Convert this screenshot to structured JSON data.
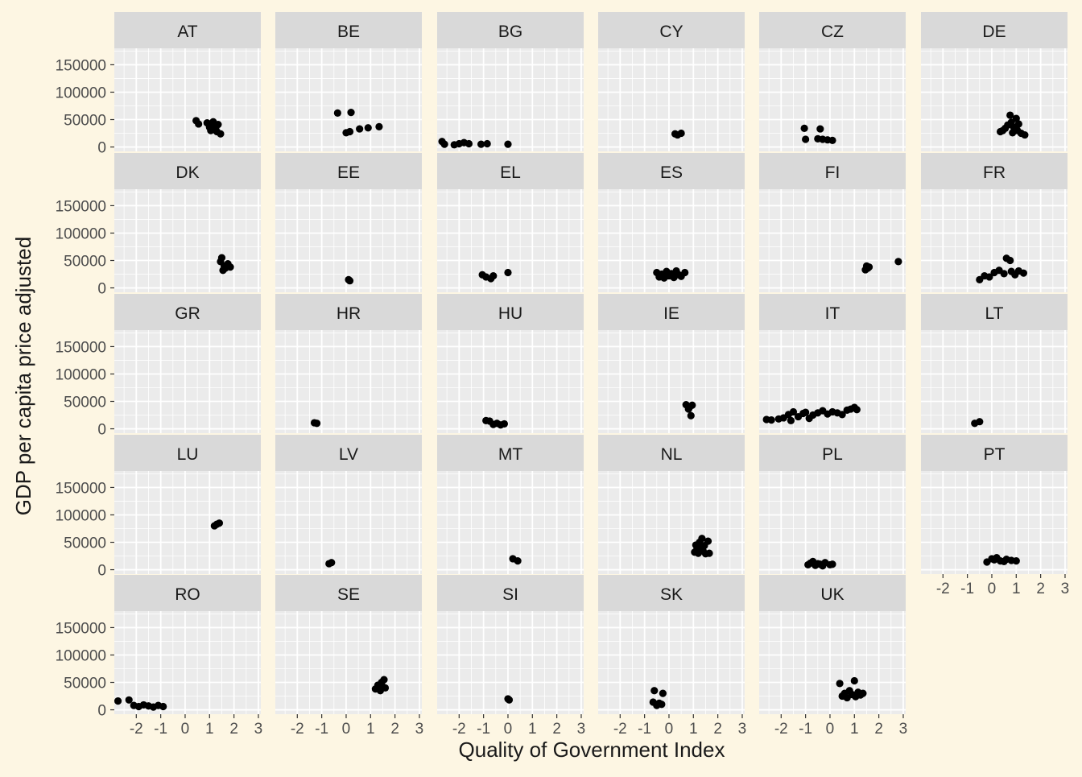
{
  "chart_data": {
    "type": "scatter",
    "xlabel": "Quality of Government Index",
    "ylabel": "GDP per capita price adjusted",
    "xlim": [
      -2.9,
      3.1
    ],
    "ylim": [
      -8000,
      180000
    ],
    "x_ticks": [
      -2,
      -1,
      0,
      1,
      2,
      3
    ],
    "x_tick_labels": [
      "-2",
      "-1",
      "0",
      "1",
      "2",
      "3"
    ],
    "y_ticks": [
      0,
      50000,
      100000,
      150000
    ],
    "y_tick_labels": [
      "0",
      "50000",
      "100000",
      "150000"
    ],
    "grid": true,
    "colors": {
      "background": "#FDF6E3",
      "panel": "#EBEBEB",
      "strip": "#D9D9D9",
      "grid": "#FFFFFF",
      "point": "#000000",
      "text": "#1A1A1A",
      "tick_text": "#4D4D4D"
    },
    "panels": [
      {
        "label": "AT",
        "points": [
          [
            0.45,
            48000
          ],
          [
            0.55,
            42000
          ],
          [
            0.9,
            44000
          ],
          [
            1.0,
            36000
          ],
          [
            1.05,
            30000
          ],
          [
            1.15,
            46000
          ],
          [
            1.2,
            40000
          ],
          [
            1.25,
            33000
          ],
          [
            1.3,
            28000
          ],
          [
            1.35,
            41000
          ],
          [
            1.45,
            24000
          ]
        ]
      },
      {
        "label": "BE",
        "points": [
          [
            -0.35,
            62000
          ],
          [
            0.0,
            26000
          ],
          [
            0.15,
            28000
          ],
          [
            0.2,
            63000
          ],
          [
            0.55,
            33000
          ],
          [
            0.9,
            35000
          ],
          [
            1.35,
            37000
          ]
        ]
      },
      {
        "label": "BG",
        "points": [
          [
            -2.7,
            10000
          ],
          [
            -2.6,
            5000
          ],
          [
            -2.2,
            4000
          ],
          [
            -2.0,
            6000
          ],
          [
            -1.8,
            8000
          ],
          [
            -1.6,
            6000
          ],
          [
            -1.1,
            5000
          ],
          [
            -0.85,
            6000
          ],
          [
            0.0,
            5000
          ]
        ]
      },
      {
        "label": "CY",
        "points": [
          [
            0.25,
            24000
          ],
          [
            0.35,
            22000
          ],
          [
            0.5,
            25000
          ]
        ]
      },
      {
        "label": "CZ",
        "points": [
          [
            -1.05,
            34000
          ],
          [
            -1.0,
            14000
          ],
          [
            -0.5,
            15000
          ],
          [
            -0.4,
            33000
          ],
          [
            -0.3,
            14000
          ],
          [
            -0.1,
            13000
          ],
          [
            0.1,
            12000
          ]
        ]
      },
      {
        "label": "DE",
        "points": [
          [
            0.35,
            28000
          ],
          [
            0.45,
            30000
          ],
          [
            0.55,
            34000
          ],
          [
            0.65,
            40000
          ],
          [
            0.75,
            58000
          ],
          [
            0.8,
            45000
          ],
          [
            0.85,
            26000
          ],
          [
            0.9,
            36000
          ],
          [
            1.0,
            52000
          ],
          [
            1.05,
            30000
          ],
          [
            1.1,
            42000
          ],
          [
            1.2,
            25000
          ],
          [
            1.35,
            22000
          ]
        ]
      },
      {
        "label": "DK",
        "points": [
          [
            1.45,
            48000
          ],
          [
            1.5,
            55000
          ],
          [
            1.55,
            32000
          ],
          [
            1.6,
            40000
          ],
          [
            1.65,
            36000
          ],
          [
            1.75,
            44000
          ],
          [
            1.85,
            38000
          ]
        ]
      },
      {
        "label": "EE",
        "points": [
          [
            0.1,
            15000
          ],
          [
            0.15,
            13000
          ]
        ]
      },
      {
        "label": "EL",
        "points": [
          [
            -1.05,
            24000
          ],
          [
            -0.9,
            20000
          ],
          [
            -0.7,
            17000
          ],
          [
            -0.6,
            22000
          ],
          [
            0.0,
            28000
          ]
        ]
      },
      {
        "label": "ES",
        "points": [
          [
            -0.5,
            28000
          ],
          [
            -0.4,
            20000
          ],
          [
            -0.3,
            25000
          ],
          [
            -0.2,
            18000
          ],
          [
            -0.1,
            30000
          ],
          [
            0.0,
            22000
          ],
          [
            0.1,
            26000
          ],
          [
            0.2,
            19000
          ],
          [
            0.3,
            31000
          ],
          [
            0.4,
            24000
          ],
          [
            0.5,
            21000
          ],
          [
            0.65,
            28000
          ]
        ]
      },
      {
        "label": "FI",
        "points": [
          [
            1.45,
            33000
          ],
          [
            1.5,
            40000
          ],
          [
            1.55,
            36000
          ],
          [
            1.6,
            38000
          ],
          [
            2.8,
            48000
          ]
        ]
      },
      {
        "label": "FR",
        "points": [
          [
            -0.5,
            15000
          ],
          [
            -0.3,
            22000
          ],
          [
            -0.1,
            20000
          ],
          [
            0.1,
            28000
          ],
          [
            0.3,
            32000
          ],
          [
            0.5,
            26000
          ],
          [
            0.6,
            54000
          ],
          [
            0.75,
            50000
          ],
          [
            0.8,
            30000
          ],
          [
            0.95,
            24000
          ],
          [
            1.1,
            31000
          ],
          [
            1.3,
            27000
          ]
        ]
      },
      {
        "label": "GR",
        "points": []
      },
      {
        "label": "HR",
        "points": [
          [
            -1.3,
            11000
          ],
          [
            -1.2,
            10000
          ]
        ]
      },
      {
        "label": "HU",
        "points": [
          [
            -0.9,
            15000
          ],
          [
            -0.75,
            14000
          ],
          [
            -0.6,
            8000
          ],
          [
            -0.45,
            10000
          ],
          [
            -0.3,
            7000
          ],
          [
            -0.15,
            9000
          ]
        ]
      },
      {
        "label": "IE",
        "points": [
          [
            0.7,
            44000
          ],
          [
            0.8,
            36000
          ],
          [
            0.85,
            40000
          ],
          [
            0.9,
            24000
          ],
          [
            0.95,
            43000
          ]
        ]
      },
      {
        "label": "IT",
        "points": [
          [
            -2.6,
            17000
          ],
          [
            -2.4,
            16000
          ],
          [
            -2.1,
            18000
          ],
          [
            -1.9,
            20000
          ],
          [
            -1.7,
            26000
          ],
          [
            -1.6,
            15000
          ],
          [
            -1.5,
            31000
          ],
          [
            -1.3,
            22000
          ],
          [
            -1.1,
            28000
          ],
          [
            -1.0,
            30000
          ],
          [
            -0.85,
            19000
          ],
          [
            -0.7,
            25000
          ],
          [
            -0.5,
            29000
          ],
          [
            -0.3,
            33000
          ],
          [
            -0.1,
            27000
          ],
          [
            0.1,
            31000
          ],
          [
            0.3,
            29000
          ],
          [
            0.5,
            26000
          ],
          [
            0.7,
            34000
          ],
          [
            0.85,
            36000
          ],
          [
            1.0,
            39000
          ],
          [
            1.1,
            35000
          ]
        ]
      },
      {
        "label": "LT",
        "points": [
          [
            -0.7,
            10000
          ],
          [
            -0.5,
            13000
          ]
        ]
      },
      {
        "label": "LU",
        "points": [
          [
            1.2,
            80000
          ],
          [
            1.3,
            83000
          ],
          [
            1.4,
            85000
          ]
        ]
      },
      {
        "label": "LV",
        "points": [
          [
            -0.7,
            11000
          ],
          [
            -0.6,
            13000
          ]
        ]
      },
      {
        "label": "MT",
        "points": [
          [
            0.2,
            20000
          ],
          [
            0.4,
            16000
          ]
        ]
      },
      {
        "label": "NL",
        "points": [
          [
            1.05,
            32000
          ],
          [
            1.1,
            45000
          ],
          [
            1.15,
            38000
          ],
          [
            1.2,
            30000
          ],
          [
            1.25,
            50000
          ],
          [
            1.3,
            40000
          ],
          [
            1.35,
            57000
          ],
          [
            1.4,
            34000
          ],
          [
            1.45,
            44000
          ],
          [
            1.5,
            29000
          ],
          [
            1.6,
            52000
          ],
          [
            1.65,
            30000
          ]
        ]
      },
      {
        "label": "PL",
        "points": [
          [
            -0.9,
            9000
          ],
          [
            -0.8,
            12000
          ],
          [
            -0.7,
            15000
          ],
          [
            -0.6,
            8000
          ],
          [
            -0.5,
            11000
          ],
          [
            -0.4,
            10000
          ],
          [
            -0.3,
            7000
          ],
          [
            -0.2,
            13000
          ],
          [
            0.0,
            9000
          ],
          [
            0.1,
            10000
          ]
        ]
      },
      {
        "label": "PT",
        "points": [
          [
            -0.2,
            14000
          ],
          [
            0.0,
            20000
          ],
          [
            0.1,
            18000
          ],
          [
            0.2,
            22000
          ],
          [
            0.35,
            16000
          ],
          [
            0.5,
            15000
          ],
          [
            0.6,
            19000
          ],
          [
            0.8,
            17000
          ],
          [
            1.0,
            16000
          ]
        ]
      },
      {
        "label": "RO",
        "points": [
          [
            -2.75,
            16000
          ],
          [
            -2.3,
            18000
          ],
          [
            -2.1,
            8000
          ],
          [
            -1.9,
            6000
          ],
          [
            -1.7,
            9000
          ],
          [
            -1.5,
            7000
          ],
          [
            -1.3,
            5000
          ],
          [
            -1.1,
            8000
          ],
          [
            -0.9,
            6000
          ]
        ]
      },
      {
        "label": "SE",
        "points": [
          [
            1.2,
            38000
          ],
          [
            1.3,
            45000
          ],
          [
            1.4,
            35000
          ],
          [
            1.45,
            50000
          ],
          [
            1.5,
            42000
          ],
          [
            1.55,
            55000
          ],
          [
            1.6,
            40000
          ]
        ]
      },
      {
        "label": "SI",
        "points": [
          [
            0.0,
            20000
          ],
          [
            0.05,
            18000
          ]
        ]
      },
      {
        "label": "SK",
        "points": [
          [
            -0.65,
            14000
          ],
          [
            -0.6,
            35000
          ],
          [
            -0.5,
            8000
          ],
          [
            -0.4,
            12000
          ],
          [
            -0.3,
            10000
          ],
          [
            -0.25,
            30000
          ]
        ]
      },
      {
        "label": "UK",
        "points": [
          [
            0.4,
            48000
          ],
          [
            0.5,
            25000
          ],
          [
            0.6,
            30000
          ],
          [
            0.7,
            22000
          ],
          [
            0.8,
            35000
          ],
          [
            0.9,
            28000
          ],
          [
            1.0,
            53000
          ],
          [
            1.05,
            24000
          ],
          [
            1.15,
            32000
          ],
          [
            1.25,
            27000
          ],
          [
            1.35,
            30000
          ]
        ]
      }
    ]
  }
}
